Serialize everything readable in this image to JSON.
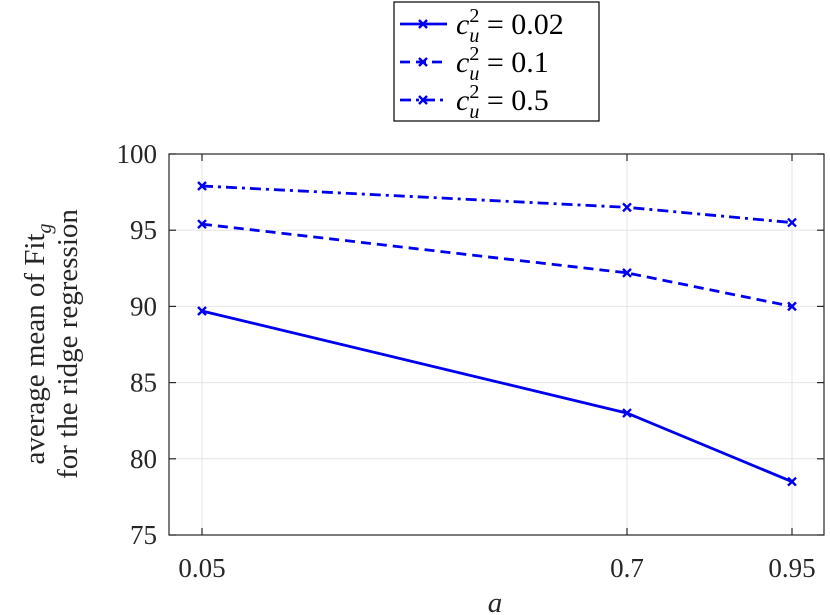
{
  "chart_data": {
    "type": "line",
    "x": [
      0.05,
      0.7,
      0.95
    ],
    "x_tick_labels": [
      "0.05",
      "0.7",
      "0.95"
    ],
    "xlabel": "a",
    "ylabel_line1": "average mean of Fit",
    "ylabel_line1_subscript": "g",
    "ylabel_line2": "for the ridge regression",
    "ylim": [
      75,
      100
    ],
    "y_ticks": [
      75,
      80,
      85,
      90,
      95,
      100
    ],
    "y_tick_labels": [
      "75",
      "80",
      "85",
      "90",
      "95",
      "100"
    ],
    "grid": true,
    "legend_position": "top-center, above plot",
    "series": [
      {
        "name": "c_u^2 = 0.02",
        "legend_value": "0.02",
        "style": "solid",
        "color": "#0000ee",
        "marker": "x",
        "values": [
          89.7,
          83.0,
          78.5
        ]
      },
      {
        "name": "c_u^2 = 0.1",
        "legend_value": "0.1",
        "style": "dashed",
        "color": "#0000ee",
        "marker": "x",
        "values": [
          95.4,
          92.2,
          90.0
        ]
      },
      {
        "name": "c_u^2 = 0.5",
        "legend_value": "0.5",
        "style": "dashdot",
        "color": "#0000ee",
        "marker": "x",
        "values": [
          97.9,
          96.5,
          95.5
        ]
      }
    ],
    "legend_symbol": {
      "c": "c",
      "u": "u",
      "sq": "2",
      "eq": "="
    }
  }
}
